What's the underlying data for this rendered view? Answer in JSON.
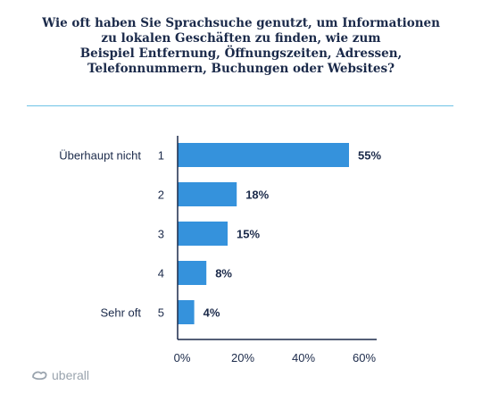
{
  "title_lines": [
    "Wie oft haben Sie Sprachsuche genutzt, um Informationen",
    "zu lokalen Geschäften zu finden, wie zum",
    "Beispiel Entfernung, Öffnungszeiten, Adressen,",
    "Telefonnummern, Buchungen oder Websites?"
  ],
  "brand": {
    "name": "uberall",
    "color": "#9aa4ae"
  },
  "chart_data": {
    "type": "bar",
    "orientation": "horizontal",
    "categories": [
      "1",
      "2",
      "3",
      "4",
      "5"
    ],
    "category_labels": [
      "Überhaupt nicht",
      "",
      "",
      "",
      "Sehr oft"
    ],
    "values": [
      55,
      18,
      15,
      8,
      4
    ],
    "value_labels": [
      "55%",
      "18%",
      "15%",
      "8%",
      "4%"
    ],
    "xlim": [
      0,
      60
    ],
    "xticks": [
      0,
      20,
      40,
      60
    ],
    "xtick_labels": [
      "0%",
      "20%",
      "40%",
      "60%"
    ],
    "bar_color": "#3592dc",
    "text_color": "#1b2a4a",
    "grid": false
  }
}
